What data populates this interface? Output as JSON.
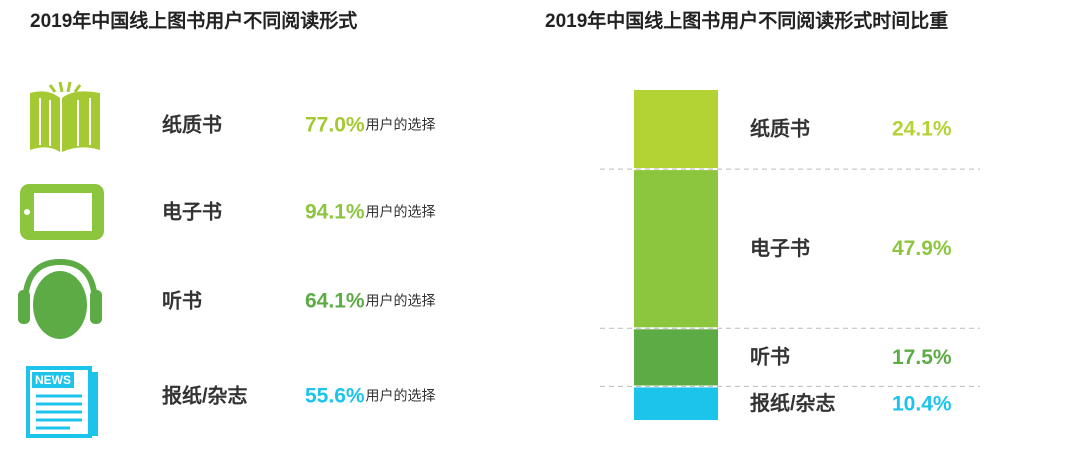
{
  "chart_data": [
    {
      "type": "icon-list",
      "title": "2019年中国线上图书用户不同阅读形式",
      "categories": [
        "纸质书",
        "电子书",
        "听书",
        "报纸/杂志"
      ],
      "values": [
        77.0,
        94.1,
        64.1,
        55.6
      ],
      "value_labels": [
        "77.0%",
        "94.1%",
        "64.1%",
        "55.6%"
      ],
      "value_suffix": "用户的选择",
      "news_icon_label": "NEWS",
      "colors": [
        "#a5c933",
        "#8cc63f",
        "#5dab45",
        "#1cc4ec"
      ]
    },
    {
      "type": "stacked-bar",
      "title": "2019年中国线上图书用户不同阅读形式时间比重",
      "categories": [
        "纸质书",
        "电子书",
        "听书",
        "报纸/杂志"
      ],
      "values": [
        24.1,
        47.9,
        17.5,
        10.4
      ],
      "value_labels": [
        "24.1%",
        "47.9%",
        "17.5%",
        "10.4%"
      ],
      "colors": [
        "#b3d335",
        "#8cc63f",
        "#5dab45",
        "#1cc4ec"
      ]
    }
  ]
}
